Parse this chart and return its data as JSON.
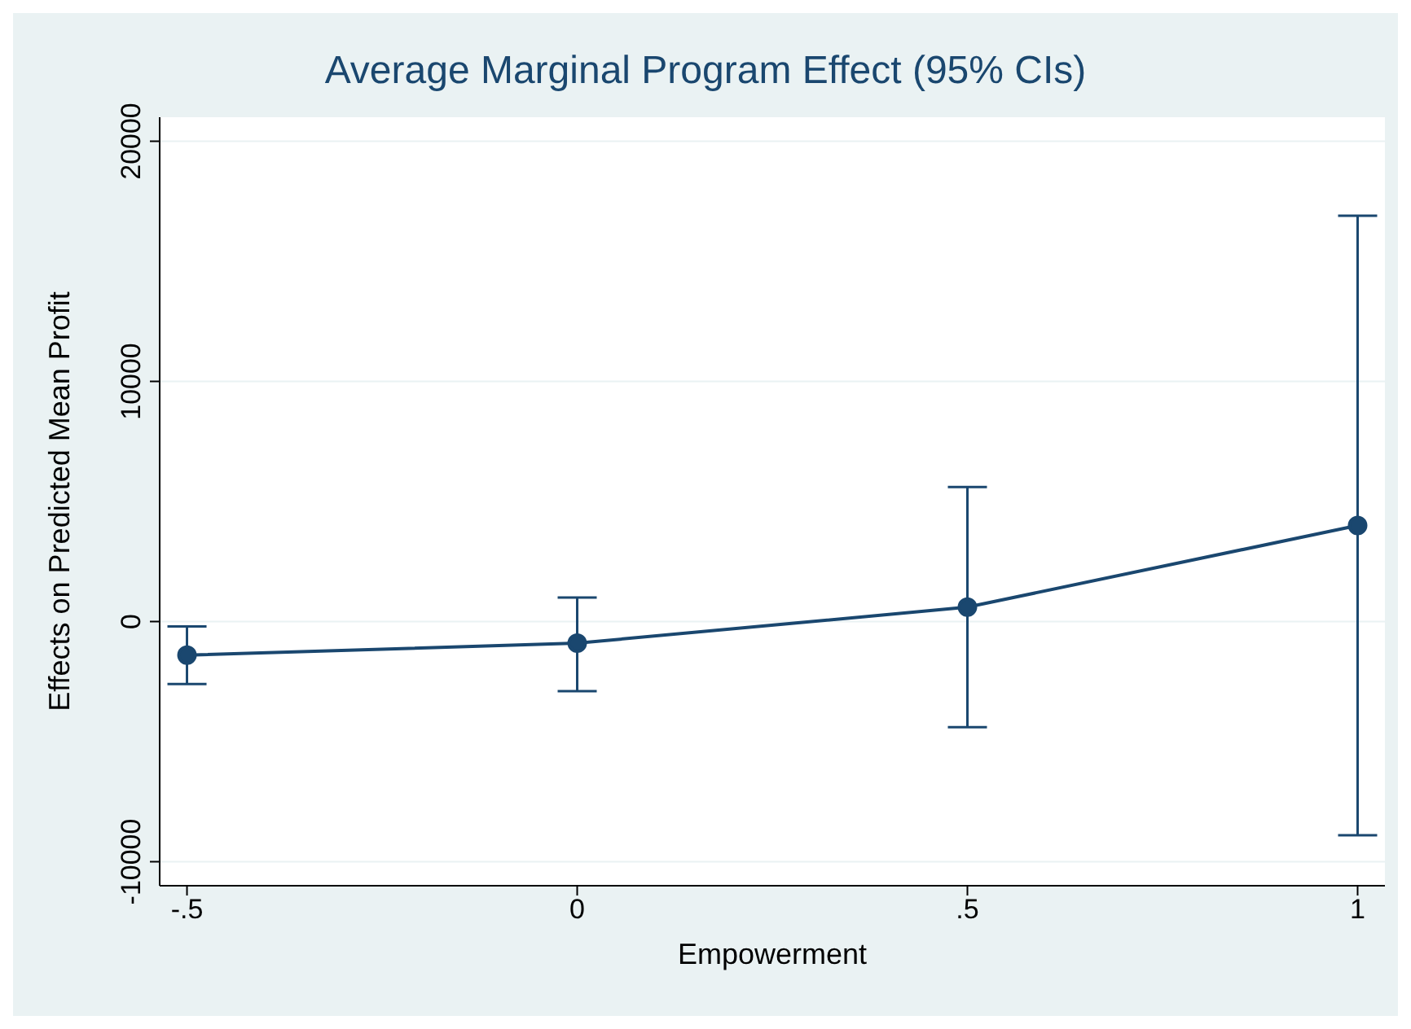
{
  "chart_data": {
    "type": "line",
    "title": "Average Marginal Program Effect (95% CIs)",
    "xlabel": "Empowerment",
    "ylabel": "Effects on Predicted Mean Profit",
    "x": [
      -0.5,
      0,
      0.5,
      1
    ],
    "series": [
      {
        "color": "#1a476f",
        "values": [
          -1400,
          -900,
          600,
          4000
        ],
        "errors": [
          [
            -2600,
            -200
          ],
          [
            -2900,
            1000
          ],
          [
            -4400,
            5600
          ],
          [
            -8900,
            16900
          ]
        ]
      }
    ],
    "xlim": [
      -0.535,
      1.035
    ],
    "xticks": [
      {
        "value": -0.5,
        "label": "-.5"
      },
      0,
      {
        "value": 0.5,
        "label": ".5"
      },
      1
    ],
    "ylim": [
      -11000,
      21000
    ],
    "yticks": [
      -10000,
      0,
      10000,
      20000
    ],
    "grid": "y",
    "marker": "circle",
    "line_style": "solid"
  }
}
